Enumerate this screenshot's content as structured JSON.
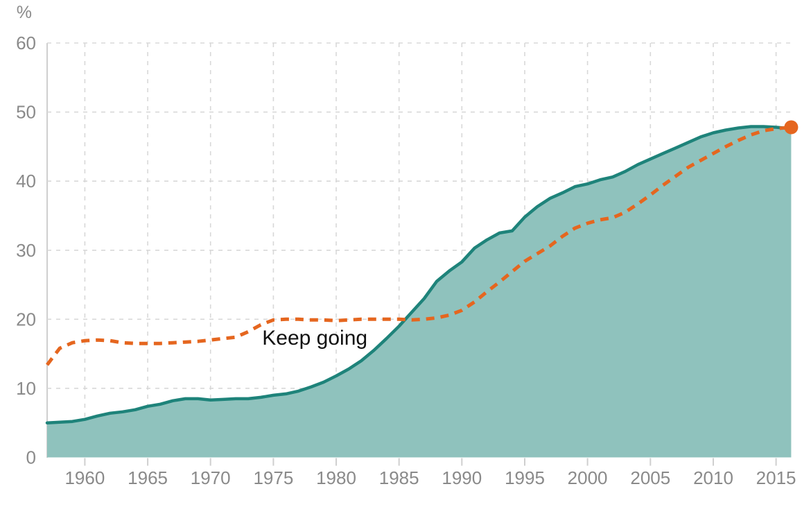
{
  "page": {
    "background": "#ffffff"
  },
  "chart_data": {
    "type": "area",
    "title": "",
    "xlabel": "",
    "ylabel": "%",
    "xlim": [
      1957,
      2016.4
    ],
    "ylim": [
      0,
      60
    ],
    "x_ticks": [
      1960,
      1965,
      1970,
      1975,
      1980,
      1985,
      1990,
      1995,
      2000,
      2005,
      2010,
      2015
    ],
    "y_ticks": [
      0,
      10,
      20,
      30,
      40,
      50,
      60
    ],
    "grid": true,
    "legend_position": "none",
    "axis": {
      "text_color": "#8a8a8a",
      "grid_color": "#d8d8d8",
      "axis_line_color": "#cfcfcf"
    },
    "series": [
      {
        "name": "filled-area-series-teal",
        "style": "area",
        "line_color": "#1e837a",
        "fill_color": "#8fc2bd",
        "x": [
          1957,
          1958,
          1959,
          1960,
          1961,
          1962,
          1963,
          1964,
          1965,
          1966,
          1967,
          1968,
          1969,
          1970,
          1971,
          1972,
          1973,
          1974,
          1975,
          1976,
          1977,
          1978,
          1979,
          1980,
          1981,
          1982,
          1983,
          1984,
          1985,
          1986,
          1987,
          1988,
          1989,
          1990,
          1991,
          1992,
          1993,
          1994,
          1995,
          1996,
          1997,
          1998,
          1999,
          2000,
          2001,
          2002,
          2003,
          2004,
          2005,
          2006,
          2007,
          2008,
          2009,
          2010,
          2011,
          2012,
          2013,
          2014,
          2015,
          2016.2
        ],
        "values": [
          5.0,
          5.1,
          5.2,
          5.5,
          6.0,
          6.4,
          6.6,
          6.9,
          7.4,
          7.7,
          8.2,
          8.5,
          8.5,
          8.3,
          8.4,
          8.5,
          8.5,
          8.7,
          9.0,
          9.2,
          9.6,
          10.2,
          10.9,
          11.8,
          12.8,
          14.0,
          15.5,
          17.2,
          19.0,
          21.0,
          23.0,
          25.5,
          27.0,
          28.3,
          30.3,
          31.5,
          32.5,
          32.8,
          34.8,
          36.3,
          37.5,
          38.3,
          39.2,
          39.6,
          40.2,
          40.6,
          41.4,
          42.4,
          43.2,
          44.0,
          44.8,
          45.6,
          46.4,
          47.0,
          47.4,
          47.7,
          47.9,
          47.9,
          47.8,
          47.6
        ]
      },
      {
        "name": "dashed-line-series-orange",
        "style": "dashed-line",
        "line_color": "#e5661f",
        "endpoint_dot": true,
        "x": [
          1957,
          1958,
          1959,
          1960,
          1961,
          1962,
          1963,
          1964,
          1965,
          1966,
          1967,
          1968,
          1969,
          1970,
          1971,
          1972,
          1973,
          1974,
          1975,
          1976,
          1977,
          1978,
          1979,
          1980,
          1981,
          1982,
          1983,
          1984,
          1985,
          1986,
          1987,
          1988,
          1989,
          1990,
          1991,
          1992,
          1993,
          1994,
          1995,
          1996,
          1997,
          1998,
          1999,
          2000,
          2001,
          2002,
          2003,
          2004,
          2005,
          2006,
          2007,
          2008,
          2009,
          2010,
          2011,
          2012,
          2013,
          2014,
          2015,
          2016.2
        ],
        "values": [
          13.4,
          15.8,
          16.6,
          16.9,
          17.0,
          16.9,
          16.6,
          16.5,
          16.5,
          16.5,
          16.6,
          16.7,
          16.8,
          17.0,
          17.2,
          17.4,
          18.2,
          19.2,
          19.9,
          20.0,
          20.0,
          19.9,
          19.9,
          19.8,
          19.9,
          20.0,
          20.0,
          20.0,
          20.0,
          19.9,
          20.0,
          20.2,
          20.6,
          21.3,
          22.5,
          24.0,
          25.4,
          26.9,
          28.4,
          29.5,
          30.6,
          32.0,
          33.2,
          33.9,
          34.4,
          34.7,
          35.5,
          36.7,
          38.0,
          39.4,
          40.7,
          42.0,
          43.0,
          44.0,
          45.0,
          45.9,
          46.7,
          47.3,
          47.6,
          47.8
        ]
      }
    ],
    "annotations": [
      {
        "text": "Keep going",
        "x": 1978.3,
        "y": 16.3,
        "color": "#111111"
      }
    ]
  }
}
